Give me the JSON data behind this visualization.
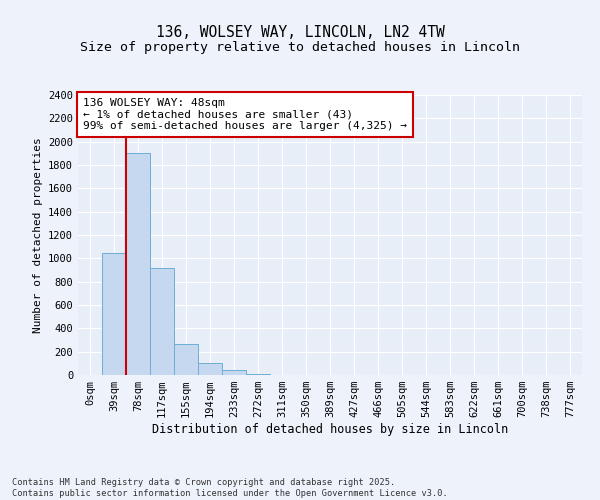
{
  "title_line1": "136, WOLSEY WAY, LINCOLN, LN2 4TW",
  "title_line2": "Size of property relative to detached houses in Lincoln",
  "xlabel": "Distribution of detached houses by size in Lincoln",
  "ylabel": "Number of detached properties",
  "bar_labels": [
    "0sqm",
    "39sqm",
    "78sqm",
    "117sqm",
    "155sqm",
    "194sqm",
    "233sqm",
    "272sqm",
    "311sqm",
    "350sqm",
    "389sqm",
    "427sqm",
    "466sqm",
    "505sqm",
    "544sqm",
    "583sqm",
    "622sqm",
    "661sqm",
    "700sqm",
    "738sqm",
    "777sqm"
  ],
  "bar_values": [
    0,
    1050,
    1900,
    920,
    270,
    100,
    40,
    10,
    0,
    0,
    0,
    0,
    0,
    0,
    0,
    0,
    0,
    0,
    0,
    0,
    0
  ],
  "bar_color": "#c5d8ef",
  "bar_edge_color": "#6baed6",
  "vline_x": 1.5,
  "vline_color": "#cc0000",
  "annotation_text": "136 WOLSEY WAY: 48sqm\n← 1% of detached houses are smaller (43)\n99% of semi-detached houses are larger (4,325) →",
  "annotation_box_color": "#cc0000",
  "ylim": [
    0,
    2400
  ],
  "yticks": [
    0,
    200,
    400,
    600,
    800,
    1000,
    1200,
    1400,
    1600,
    1800,
    2000,
    2200,
    2400
  ],
  "background_color": "#eef2fb",
  "plot_bg_color": "#e8eef8",
  "grid_color": "#ffffff",
  "footer_text": "Contains HM Land Registry data © Crown copyright and database right 2025.\nContains public sector information licensed under the Open Government Licence v3.0.",
  "title_fontsize": 10.5,
  "subtitle_fontsize": 9.5,
  "axis_label_fontsize": 8.5,
  "tick_fontsize": 7.5,
  "ylabel_fontsize": 8
}
